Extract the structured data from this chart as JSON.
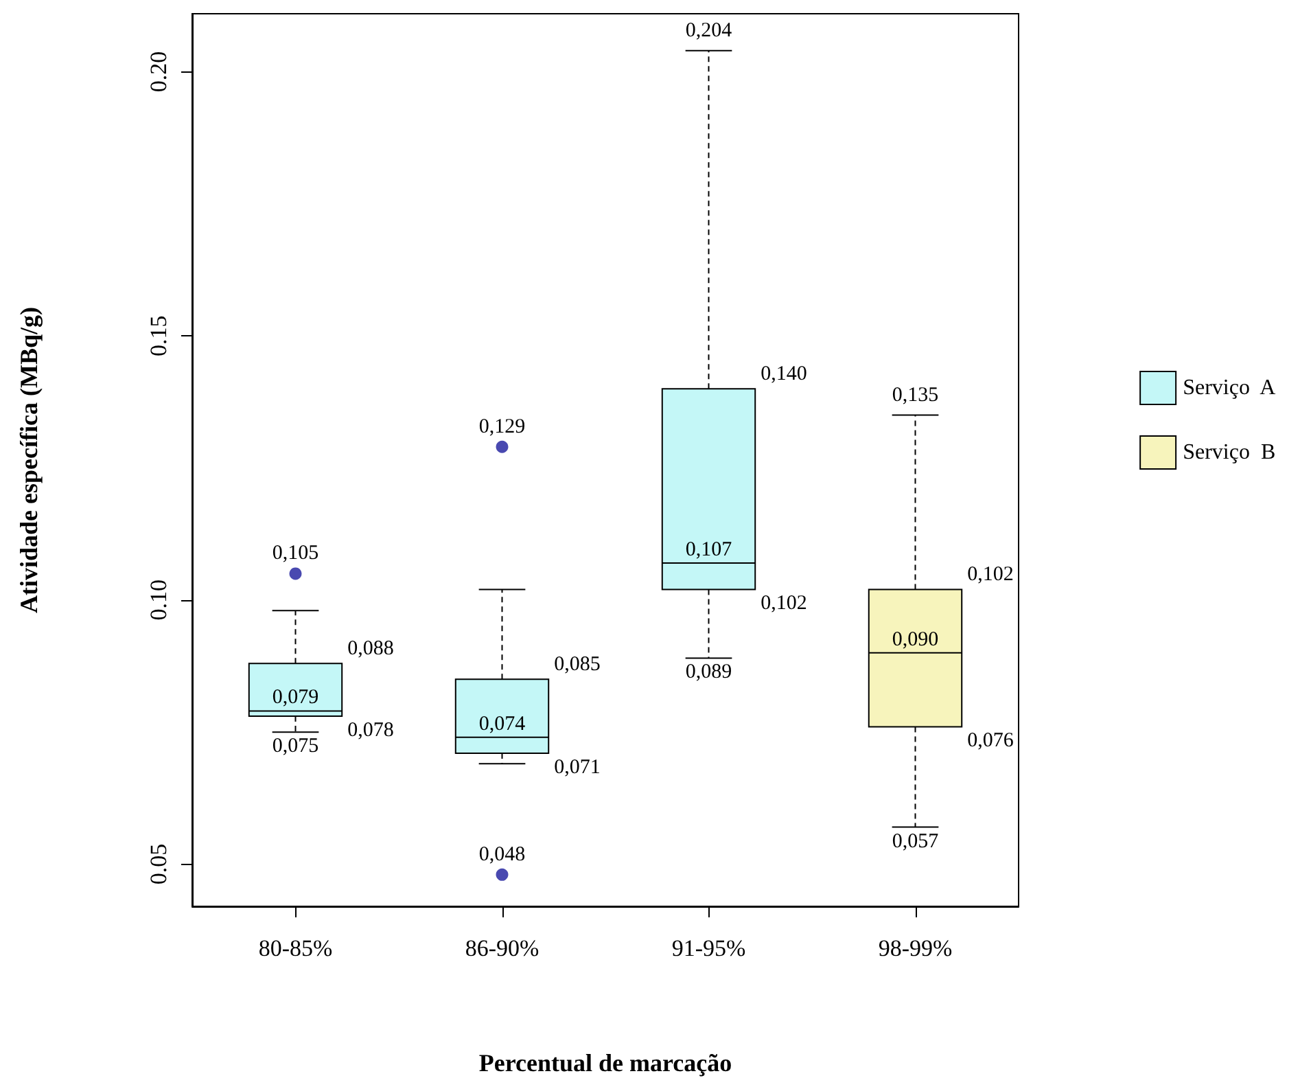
{
  "chart_data": {
    "type": "box",
    "xlabel": "Percentual de marcação",
    "ylabel": "Atividade específica (MBq/g)",
    "categories": [
      "80-85%",
      "86-90%",
      "91-95%",
      "98-99%"
    ],
    "series": [
      {
        "name": "Serviço  A",
        "color": "#c4f7f7",
        "boxes": [
          {
            "low": 0.075,
            "q1": 0.078,
            "median": 0.079,
            "q3": 0.088,
            "high": 0.098,
            "outliers": [
              0.105
            ]
          },
          {
            "low": 0.069,
            "q1": 0.071,
            "median": 0.074,
            "q3": 0.085,
            "high": 0.102,
            "outliers": [
              0.129,
              0.048
            ]
          },
          {
            "low": 0.089,
            "q1": 0.102,
            "median": 0.107,
            "q3": 0.14,
            "high": 0.204
          },
          null
        ]
      },
      {
        "name": "Serviço  B",
        "color": "#f7f4bc",
        "boxes": [
          null,
          null,
          null,
          {
            "low": 0.057,
            "q1": 0.076,
            "median": 0.09,
            "q3": 0.102,
            "high": 0.135
          }
        ]
      }
    ],
    "ylim": [
      0.042,
      0.211
    ],
    "yticks": [
      {
        "value": 0.05,
        "label": "0.05"
      },
      {
        "value": 0.1,
        "label": "0.10"
      },
      {
        "value": 0.15,
        "label": "0.15"
      },
      {
        "value": 0.2,
        "label": "0.20"
      }
    ],
    "legend": "right",
    "annotations": [
      "0,105",
      {
        "text": "0,088",
        "x": "80-85%",
        "y": 0.088
      },
      {
        "text": "0,079",
        "x": "80-85%",
        "y": 0.079
      },
      {
        "text": "0,078",
        "x": "80-85%",
        "y": 0.078
      },
      {
        "text": "0,075",
        "x": "80-85%",
        "y": 0.075
      },
      "0,129",
      {
        "text": "0,085",
        "x": "86-90%",
        "y": 0.085
      },
      {
        "text": "0,074",
        "x": "86-90%",
        "y": 0.074
      },
      {
        "text": "0,071",
        "x": "86-90%",
        "y": 0.071
      },
      "0,048",
      {
        "text": "0,204",
        "x": "91-95%",
        "y": 0.204
      },
      {
        "text": "0,140",
        "x": "91-95%",
        "y": 0.14
      },
      {
        "text": "0,107",
        "x": "91-95%",
        "y": 0.107
      },
      {
        "text": "0,102",
        "x": "91-95%",
        "y": 0.102
      },
      {
        "text": "0,089",
        "x": "91-95%",
        "y": 0.089
      },
      {
        "text": "0,135",
        "x": "98-99%",
        "y": 0.135
      },
      {
        "text": "0,102",
        "x": "98-99%",
        "y": 0.102
      },
      {
        "text": "0,090",
        "x": "98-99%",
        "y": 0.09
      },
      {
        "text": "0,076",
        "x": "98-99%",
        "y": 0.076
      },
      {
        "text": "0,057",
        "x": "98-99%",
        "y": 0.057
      }
    ]
  }
}
